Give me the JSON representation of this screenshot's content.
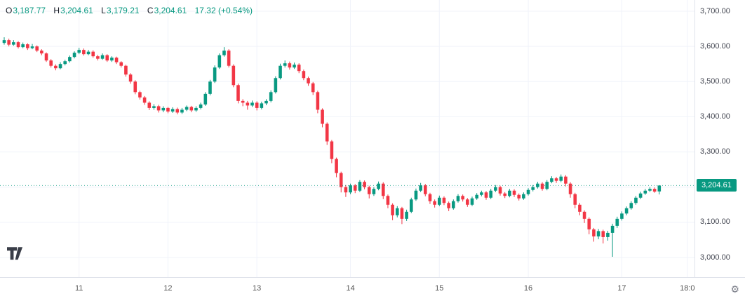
{
  "colors": {
    "up": "#089981",
    "down": "#F23645",
    "grid": "#f0f3fa",
    "axis_text": "#434651",
    "ohlc_letter": "#131722",
    "badge_text": "#ffffff"
  },
  "ohlc_readout": {
    "o_label": "O",
    "o_value": "3,187.77",
    "h_label": "H",
    "h_value": "3,204.61",
    "l_label": "L",
    "l_value": "3,179.21",
    "c_label": "C",
    "c_value": "3,204.61",
    "change": "17.32 (+0.54%)"
  },
  "price_axis": {
    "labels": [
      "3,700.00",
      "3,600.00",
      "3,500.00",
      "3,400.00",
      "3,300.00",
      "3,200.00",
      "3,100.00",
      "3,000.00"
    ],
    "values": [
      3700,
      3600,
      3500,
      3400,
      3300,
      3200,
      3100,
      3000
    ],
    "last_badge": "3,204.61"
  },
  "time_axis": {
    "ticks": [
      {
        "index": 16,
        "label": "11"
      },
      {
        "index": 35,
        "label": "12"
      },
      {
        "index": 54,
        "label": "13"
      },
      {
        "index": 74,
        "label": "14"
      },
      {
        "index": 93,
        "label": "15"
      },
      {
        "index": 112,
        "label": "16"
      },
      {
        "index": 132,
        "label": "17"
      },
      {
        "index": 146,
        "label": "18:0"
      }
    ]
  },
  "icons": {
    "gear": "⚙",
    "logo": "tradingview-logo"
  },
  "chart_data": {
    "type": "candlestick",
    "ohlc_format": "[open, high, low, close]",
    "last_price": 3204.61,
    "y_ticks": [
      3000,
      3100,
      3200,
      3300,
      3400,
      3500,
      3600,
      3700
    ],
    "ylim": [
      2944,
      3732
    ],
    "x_tick_labels": [
      "11",
      "12",
      "13",
      "14",
      "15",
      "16",
      "17",
      "18:0"
    ],
    "legend_position": "none",
    "grid": true,
    "candles": [
      [
        3610,
        3626,
        3605,
        3618
      ],
      [
        3618,
        3622,
        3600,
        3605
      ],
      [
        3605,
        3618,
        3602,
        3612
      ],
      [
        3612,
        3615,
        3594,
        3598
      ],
      [
        3598,
        3611,
        3595,
        3606
      ],
      [
        3606,
        3609,
        3590,
        3595
      ],
      [
        3595,
        3607,
        3592,
        3600
      ],
      [
        3600,
        3603,
        3584,
        3588
      ],
      [
        3588,
        3592,
        3575,
        3580
      ],
      [
        3580,
        3583,
        3556,
        3560
      ],
      [
        3560,
        3564,
        3540,
        3545
      ],
      [
        3545,
        3549,
        3532,
        3538
      ],
      [
        3538,
        3555,
        3535,
        3550
      ],
      [
        3550,
        3562,
        3546,
        3558
      ],
      [
        3558,
        3574,
        3554,
        3570
      ],
      [
        3570,
        3586,
        3566,
        3582
      ],
      [
        3582,
        3596,
        3578,
        3590
      ],
      [
        3590,
        3594,
        3574,
        3578
      ],
      [
        3578,
        3590,
        3575,
        3585
      ],
      [
        3585,
        3589,
        3568,
        3572
      ],
      [
        3572,
        3576,
        3560,
        3565
      ],
      [
        3565,
        3580,
        3562,
        3575
      ],
      [
        3575,
        3578,
        3556,
        3560
      ],
      [
        3560,
        3572,
        3556,
        3568
      ],
      [
        3568,
        3571,
        3550,
        3555
      ],
      [
        3555,
        3558,
        3540,
        3545
      ],
      [
        3545,
        3548,
        3514,
        3520
      ],
      [
        3520,
        3524,
        3494,
        3500
      ],
      [
        3500,
        3504,
        3464,
        3470
      ],
      [
        3470,
        3474,
        3449,
        3455
      ],
      [
        3455,
        3459,
        3434,
        3440
      ],
      [
        3440,
        3444,
        3419,
        3425
      ],
      [
        3425,
        3436,
        3420,
        3430
      ],
      [
        3430,
        3434,
        3412,
        3418
      ],
      [
        3418,
        3430,
        3413,
        3425
      ],
      [
        3425,
        3428,
        3410,
        3415
      ],
      [
        3415,
        3427,
        3411,
        3422
      ],
      [
        3422,
        3426,
        3407,
        3412
      ],
      [
        3412,
        3425,
        3408,
        3420
      ],
      [
        3420,
        3432,
        3416,
        3428
      ],
      [
        3428,
        3431,
        3413,
        3418
      ],
      [
        3418,
        3430,
        3414,
        3425
      ],
      [
        3425,
        3440,
        3421,
        3435
      ],
      [
        3435,
        3470,
        3431,
        3465
      ],
      [
        3465,
        3505,
        3461,
        3500
      ],
      [
        3500,
        3546,
        3496,
        3540
      ],
      [
        3540,
        3580,
        3536,
        3575
      ],
      [
        3575,
        3598,
        3571,
        3588
      ],
      [
        3588,
        3592,
        3540,
        3545
      ],
      [
        3545,
        3549,
        3484,
        3490
      ],
      [
        3490,
        3494,
        3438,
        3445
      ],
      [
        3445,
        3450,
        3430,
        3440
      ],
      [
        3440,
        3445,
        3420,
        3432
      ],
      [
        3432,
        3446,
        3428,
        3440
      ],
      [
        3440,
        3444,
        3418,
        3425
      ],
      [
        3425,
        3443,
        3421,
        3438
      ],
      [
        3438,
        3450,
        3433,
        3445
      ],
      [
        3445,
        3475,
        3441,
        3470
      ],
      [
        3470,
        3515,
        3466,
        3510
      ],
      [
        3510,
        3551,
        3506,
        3545
      ],
      [
        3545,
        3560,
        3540,
        3552
      ],
      [
        3552,
        3557,
        3534,
        3540
      ],
      [
        3540,
        3554,
        3536,
        3548
      ],
      [
        3548,
        3552,
        3524,
        3530
      ],
      [
        3530,
        3534,
        3504,
        3510
      ],
      [
        3510,
        3514,
        3488,
        3495
      ],
      [
        3495,
        3499,
        3462,
        3470
      ],
      [
        3470,
        3474,
        3410,
        3420
      ],
      [
        3420,
        3424,
        3370,
        3380
      ],
      [
        3380,
        3384,
        3320,
        3330
      ],
      [
        3330,
        3334,
        3268,
        3280
      ],
      [
        3280,
        3284,
        3228,
        3240
      ],
      [
        3240,
        3244,
        3185,
        3200
      ],
      [
        3200,
        3206,
        3172,
        3185
      ],
      [
        3185,
        3210,
        3180,
        3205
      ],
      [
        3205,
        3209,
        3183,
        3190
      ],
      [
        3190,
        3220,
        3186,
        3215
      ],
      [
        3215,
        3219,
        3194,
        3200
      ],
      [
        3200,
        3204,
        3168,
        3180
      ],
      [
        3180,
        3200,
        3175,
        3195
      ],
      [
        3195,
        3216,
        3191,
        3210
      ],
      [
        3210,
        3214,
        3166,
        3175
      ],
      [
        3175,
        3179,
        3140,
        3150
      ],
      [
        3150,
        3154,
        3106,
        3120
      ],
      [
        3120,
        3146,
        3114,
        3140
      ],
      [
        3140,
        3144,
        3095,
        3110
      ],
      [
        3110,
        3136,
        3104,
        3130
      ],
      [
        3130,
        3170,
        3126,
        3165
      ],
      [
        3165,
        3196,
        3161,
        3190
      ],
      [
        3190,
        3212,
        3186,
        3205
      ],
      [
        3205,
        3209,
        3174,
        3180
      ],
      [
        3180,
        3184,
        3152,
        3160
      ],
      [
        3160,
        3165,
        3142,
        3150
      ],
      [
        3150,
        3176,
        3146,
        3170
      ],
      [
        3170,
        3174,
        3149,
        3155
      ],
      [
        3155,
        3159,
        3132,
        3140
      ],
      [
        3140,
        3165,
        3136,
        3160
      ],
      [
        3160,
        3180,
        3156,
        3175
      ],
      [
        3175,
        3179,
        3159,
        3165
      ],
      [
        3165,
        3169,
        3144,
        3150
      ],
      [
        3150,
        3173,
        3146,
        3168
      ],
      [
        3168,
        3183,
        3164,
        3178
      ],
      [
        3178,
        3190,
        3174,
        3185
      ],
      [
        3185,
        3189,
        3164,
        3170
      ],
      [
        3170,
        3195,
        3166,
        3190
      ],
      [
        3190,
        3206,
        3186,
        3200
      ],
      [
        3200,
        3204,
        3176,
        3182
      ],
      [
        3182,
        3186,
        3169,
        3175
      ],
      [
        3175,
        3195,
        3171,
        3190
      ],
      [
        3190,
        3194,
        3172,
        3178
      ],
      [
        3178,
        3182,
        3162,
        3168
      ],
      [
        3168,
        3185,
        3164,
        3180
      ],
      [
        3180,
        3197,
        3176,
        3192
      ],
      [
        3192,
        3206,
        3188,
        3200
      ],
      [
        3200,
        3215,
        3196,
        3210
      ],
      [
        3210,
        3214,
        3190,
        3195
      ],
      [
        3195,
        3220,
        3191,
        3215
      ],
      [
        3215,
        3231,
        3211,
        3225
      ],
      [
        3225,
        3229,
        3212,
        3218
      ],
      [
        3218,
        3236,
        3214,
        3230
      ],
      [
        3230,
        3234,
        3202,
        3210
      ],
      [
        3210,
        3214,
        3170,
        3180
      ],
      [
        3180,
        3184,
        3140,
        3150
      ],
      [
        3150,
        3155,
        3120,
        3130
      ],
      [
        3130,
        3134,
        3098,
        3110
      ],
      [
        3110,
        3114,
        3066,
        3080
      ],
      [
        3080,
        3084,
        3045,
        3060
      ],
      [
        3060,
        3081,
        3052,
        3075
      ],
      [
        3075,
        3079,
        3040,
        3058
      ],
      [
        3058,
        3076,
        3048,
        3070
      ],
      [
        3070,
        3096,
        3002,
        3090
      ],
      [
        3090,
        3116,
        3084,
        3110
      ],
      [
        3110,
        3131,
        3105,
        3125
      ],
      [
        3125,
        3145,
        3120,
        3140
      ],
      [
        3140,
        3160,
        3136,
        3155
      ],
      [
        3155,
        3175,
        3150,
        3170
      ],
      [
        3170,
        3187,
        3166,
        3182
      ],
      [
        3182,
        3195,
        3178,
        3190
      ],
      [
        3190,
        3200,
        3186,
        3195
      ],
      [
        3195,
        3199,
        3184,
        3187.29
      ],
      [
        3187.77,
        3204.61,
        3179.21,
        3204.61
      ]
    ]
  }
}
